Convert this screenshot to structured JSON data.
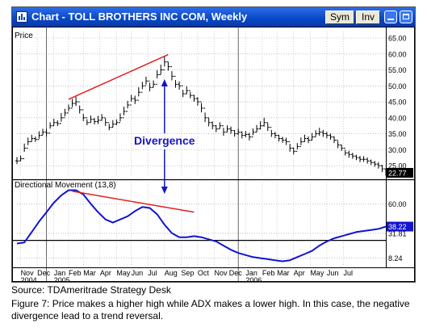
{
  "window": {
    "title": "Chart - TOLL BROTHERS INC COM, Weekly",
    "sym_label": "Sym",
    "inv_label": "Inv"
  },
  "source": "Source: TDAmeritrade Strategy Desk",
  "caption": "Figure 7: Price makes a higher high while ADX makes a lower high. In this case, the negative divergence lead to a trend reversal.",
  "chart_data": [
    {
      "type": "bar",
      "panel_label": "Price",
      "x_range": [
        0,
        100
      ],
      "ylim": [
        22,
        65
      ],
      "y_ticks": [
        25,
        30,
        35,
        40,
        45,
        50,
        55,
        60,
        65
      ],
      "y_tick_labels": [
        "25.00",
        "30.00",
        "35.00",
        "40.00",
        "45.00",
        "50.00",
        "55.00",
        "60.00",
        "65.00"
      ],
      "last_value": 22.77,
      "last_value_label": "22.77",
      "x": [
        0,
        1,
        2,
        3,
        4,
        5,
        6,
        7,
        8,
        9,
        10,
        11,
        12,
        13,
        14,
        15,
        16,
        17,
        18,
        19,
        20,
        21,
        22,
        23,
        24,
        25,
        26,
        27,
        28,
        29,
        30,
        31,
        32,
        33,
        34,
        35,
        36,
        37,
        38,
        39,
        40,
        41,
        42,
        43,
        44,
        45,
        46,
        47,
        48,
        49,
        50,
        51,
        52,
        53,
        54,
        55,
        56,
        57,
        58,
        59,
        60,
        61,
        62,
        63,
        64,
        65,
        66,
        67,
        68,
        69,
        70,
        71,
        72,
        73,
        74,
        75,
        76,
        77,
        78,
        79,
        80,
        81,
        82,
        83,
        84,
        85,
        86,
        87,
        88,
        89,
        90,
        91,
        92,
        93,
        94,
        95,
        96,
        97,
        98,
        99,
        100
      ],
      "close": [
        26.5,
        27.2,
        30.5,
        32.5,
        33.5,
        33.2,
        34.5,
        35.5,
        35.2,
        37.5,
        38.5,
        38.2,
        40.0,
        41.5,
        43.0,
        44.5,
        45.0,
        42.5,
        40.0,
        38.5,
        39.5,
        38.8,
        39.2,
        40.0,
        38.5,
        37.0,
        38.0,
        38.5,
        40.0,
        42.0,
        44.0,
        46.0,
        45.5,
        48.0,
        50.0,
        51.5,
        49.5,
        50.5,
        53.5,
        55.0,
        57.5,
        56.0,
        53.0,
        50.5,
        50.0,
        47.5,
        48.5,
        47.0,
        46.0,
        45.0,
        43.0,
        40.0,
        38.5,
        37.5,
        36.5,
        37.5,
        35.5,
        36.5,
        36.0,
        35.0,
        35.5,
        34.5,
        34.8,
        34.0,
        35.5,
        36.5,
        37.5,
        38.5,
        37.0,
        35.0,
        34.5,
        33.5,
        33.0,
        32.5,
        30.5,
        29.5,
        31.0,
        32.5,
        33.5,
        33.0,
        34.0,
        35.0,
        35.5,
        35.0,
        34.5,
        34.0,
        33.0,
        31.5,
        30.5,
        29.0,
        28.5,
        28.0,
        27.5,
        27.0,
        27.0,
        26.5,
        26.0,
        25.5,
        25.0,
        24.0,
        22.77
      ],
      "range": [
        2.2,
        1.8,
        2.6,
        2.4,
        2.1,
        1.7,
        2.3,
        1.9,
        2.5,
        2.0,
        2.2,
        1.8,
        2.7,
        2.4,
        2.1,
        2.6,
        2.9,
        2.5,
        2.3,
        1.9,
        2.2,
        2.0,
        2.6,
        2.1,
        2.4,
        2.0,
        2.3,
        1.8,
        2.5,
        2.7,
        2.4,
        2.2,
        2.6,
        2.9,
        2.3,
        2.5,
        2.7,
        2.2,
        2.6,
        3.0,
        3.2,
        2.8,
        2.9,
        2.4,
        2.6,
        2.3,
        2.5,
        2.0,
        2.2,
        2.7,
        2.9,
        3.0,
        2.6,
        2.4,
        2.2,
        2.0,
        2.5,
        2.1,
        2.3,
        2.0,
        1.9,
        2.2,
        2.0,
        2.4,
        2.1,
        2.3,
        2.6,
        2.8,
        2.5,
        2.2,
        2.0,
        2.1,
        1.9,
        2.3,
        2.5,
        2.2,
        2.0,
        2.4,
        2.2,
        2.1,
        2.3,
        2.0,
        2.5,
        2.2,
        2.0,
        1.9,
        2.1,
        2.3,
        2.0,
        1.8,
        2.2,
        1.9,
        1.7,
        2.0,
        1.8,
        1.9,
        1.7,
        1.8,
        2.0,
        2.3,
        2.0
      ],
      "trendline": [
        [
          14,
          45.8
        ],
        [
          41,
          59.8
        ]
      ],
      "line_color": "#e02020"
    },
    {
      "type": "line",
      "panel_label": "Directional Movement (13,8)",
      "x_range": [
        0,
        100
      ],
      "ylim": [
        0,
        78
      ],
      "y_ticks": [
        8.24,
        31.81,
        60.0
      ],
      "y_tick_labels": [
        "8.24",
        "31.81",
        "60.00"
      ],
      "last_value": 38.22,
      "last_value_label": "38.22",
      "reference_level": 25.0,
      "x": [
        0,
        2,
        4,
        6,
        8,
        10,
        12,
        14,
        16,
        18,
        20,
        22,
        24,
        26,
        28,
        30,
        32,
        34,
        36,
        38,
        40,
        42,
        44,
        46,
        48,
        50,
        52,
        54,
        56,
        58,
        60,
        62,
        64,
        66,
        68,
        70,
        72,
        74,
        76,
        78,
        80,
        82,
        84,
        86,
        88,
        90,
        92,
        94,
        96,
        98,
        100
      ],
      "values": [
        22,
        23,
        33,
        43,
        52,
        61,
        68,
        73,
        73,
        69,
        60,
        52,
        45,
        42,
        45,
        48,
        53,
        57,
        56,
        50,
        40,
        32,
        28,
        28,
        29,
        28,
        26,
        24,
        20,
        16,
        13,
        11,
        9,
        8,
        7,
        6,
        5,
        6,
        9,
        12,
        15,
        20,
        24,
        27,
        29,
        31,
        33,
        34,
        35,
        36,
        38.22
      ],
      "trendline": [
        [
          15,
          72
        ],
        [
          48,
          52
        ]
      ],
      "line_color": "#1414d0"
    }
  ],
  "x_axis": {
    "months": [
      {
        "label": "Nov",
        "x": 1
      },
      {
        "label": "Dec",
        "x": 5.5
      },
      {
        "label": "Jan",
        "x": 10
      },
      {
        "label": "Feb",
        "x": 14
      },
      {
        "label": "Mar",
        "x": 18
      },
      {
        "label": "Apr",
        "x": 22.5
      },
      {
        "label": "May",
        "x": 27
      },
      {
        "label": "Jun",
        "x": 31
      },
      {
        "label": "Jul",
        "x": 35.5
      },
      {
        "label": "Aug",
        "x": 40
      },
      {
        "label": "Sep",
        "x": 44.5
      },
      {
        "label": "Oct",
        "x": 49
      },
      {
        "label": "Nov",
        "x": 53.5
      },
      {
        "label": "Dec",
        "x": 57.5
      },
      {
        "label": "Jan",
        "x": 62
      },
      {
        "label": "Feb",
        "x": 66.5
      },
      {
        "label": "Mar",
        "x": 70.5
      },
      {
        "label": "Apr",
        "x": 75
      },
      {
        "label": "May",
        "x": 79.5
      },
      {
        "label": "Jun",
        "x": 84
      },
      {
        "label": "Jul",
        "x": 88.5
      }
    ],
    "years": [
      {
        "label": "2004",
        "x": 1
      },
      {
        "label": "2005",
        "x": 10
      },
      {
        "label": "2006",
        "x": 62
      }
    ],
    "year_dividers": [
      8,
      60
    ]
  },
  "annotation": {
    "label": "Divergence",
    "x": 40,
    "color": "#1414c8"
  }
}
